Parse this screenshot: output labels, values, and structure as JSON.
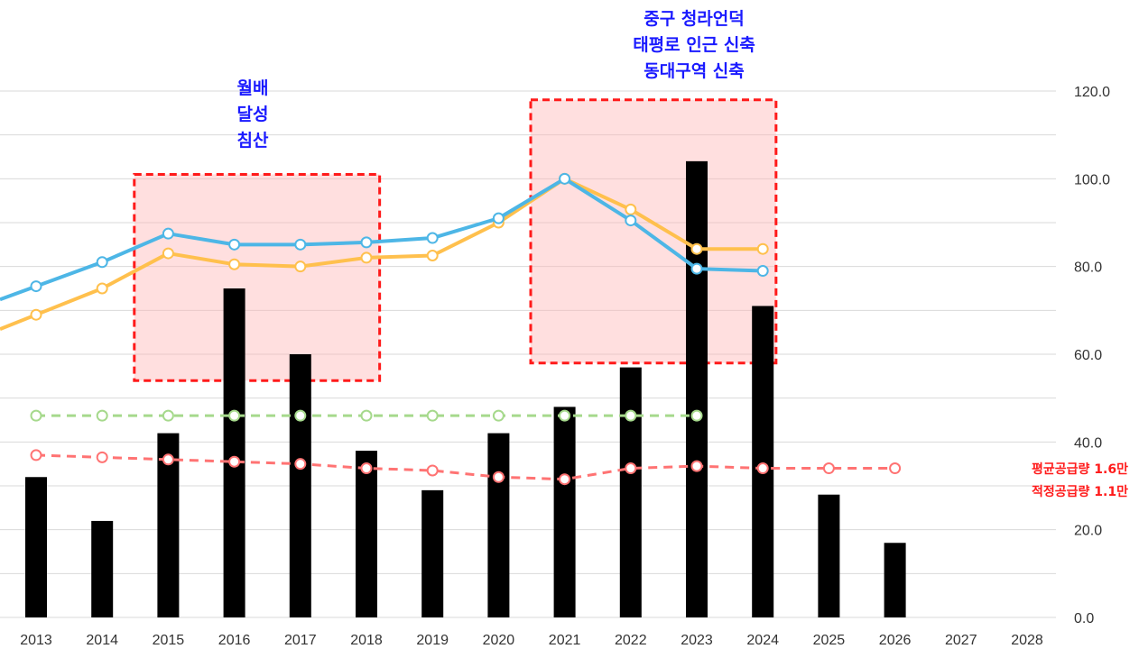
{
  "chart_data": {
    "type": "bar",
    "categories": [
      "2013",
      "2014",
      "2015",
      "2016",
      "2017",
      "2018",
      "2019",
      "2020",
      "2021",
      "2022",
      "2023",
      "2024",
      "2025",
      "2026",
      "2027",
      "2028"
    ],
    "y_ticks": [
      "0.0",
      "20.0",
      "40.0",
      "60.0",
      "80.0",
      "100.0",
      "120.0"
    ],
    "ylim": [
      0,
      120
    ],
    "y_axis_position": "right",
    "grid": true,
    "series": [
      {
        "type": "bar",
        "color": "#000000",
        "values": [
          32,
          22,
          42,
          75,
          60,
          38,
          29,
          42,
          48,
          57,
          104,
          71,
          28,
          17,
          null,
          null
        ]
      },
      {
        "type": "line",
        "color": "#4db6e6",
        "values": [
          75.5,
          81,
          87.5,
          85,
          85,
          85.5,
          86.5,
          91,
          100,
          90.5,
          79.5,
          79,
          null,
          null,
          null,
          null
        ]
      },
      {
        "type": "line",
        "color": "#ffc04d",
        "values": [
          69,
          75,
          83,
          80.5,
          80,
          82,
          82.5,
          90,
          100,
          93,
          84,
          84,
          null,
          null,
          null,
          null
        ]
      },
      {
        "type": "line",
        "color": "#a6d98c",
        "dashed": true,
        "values": [
          46,
          46,
          46,
          46,
          46,
          46,
          46,
          46,
          46,
          46,
          46,
          null,
          null,
          null,
          null,
          null
        ]
      },
      {
        "type": "line",
        "color": "#ff7373",
        "dashed": true,
        "values": [
          37,
          36.5,
          36,
          35.5,
          35,
          34,
          33.5,
          32,
          31.5,
          34,
          34.5,
          34,
          34,
          34,
          null,
          null
        ]
      }
    ],
    "highlight_regions": [
      {
        "x_from": "2015",
        "x_to": "2018",
        "y_from": 54,
        "y_to": 101
      },
      {
        "x_from": "2021",
        "x_to": "2024",
        "y_from": 58,
        "y_to": 118
      }
    ],
    "annotations": [
      {
        "lines": [
          "월배",
          "달성",
          "침산"
        ],
        "color": "#1a1aff"
      },
      {
        "lines": [
          "중구 청라언덕",
          "태평로 인근 신축",
          "동대구역 신축"
        ],
        "color": "#1a1aff"
      },
      {
        "lines": [
          "평균공급량 1.6만",
          "적정공급량 1.1만"
        ],
        "color": "#ff1a1a"
      }
    ]
  }
}
